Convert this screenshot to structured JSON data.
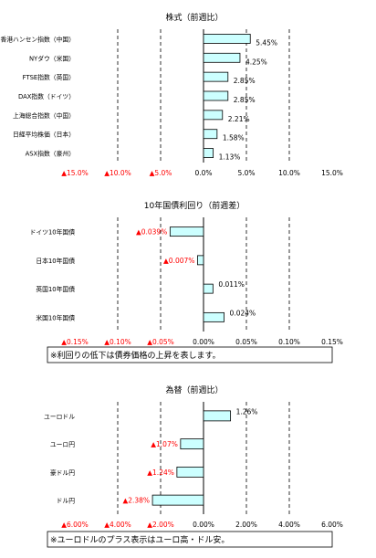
{
  "chart_data": [
    {
      "type": "bar",
      "orientation": "horizontal",
      "title": "株式（前週比）",
      "categories": [
        "香港ハンセン指数（中国）",
        "NYダウ（米国）",
        "FTSE指数（英国）",
        "DAX指数（ドイツ）",
        "上海総合指数（中国）",
        "日経平均株価（日本）",
        "ASX指数（豪州）"
      ],
      "values": [
        5.45,
        4.25,
        2.85,
        2.85,
        2.21,
        1.58,
        1.13
      ],
      "value_labels": [
        "5.45%",
        "4.25%",
        "2.85%",
        "2.85%",
        "2.21%",
        "1.58%",
        "1.13%"
      ],
      "xlim": [
        -15,
        15
      ],
      "ticks": [
        -15,
        -10,
        -5,
        0,
        5,
        10,
        15
      ],
      "tick_labels": [
        "▲15.0%",
        "▲10.0%",
        "▲5.0%",
        "0.0%",
        "5.0%",
        "10.0%",
        "15.0%"
      ],
      "grid": "vertical dashed",
      "note": ""
    },
    {
      "type": "bar",
      "orientation": "horizontal",
      "title": "10年国債利回り（前週差）",
      "categories": [
        "ドイツ10年国債",
        "日本10年国債",
        "英国10年国債",
        "米国10年国債"
      ],
      "values": [
        -0.039,
        -0.007,
        0.011,
        0.024
      ],
      "value_labels": [
        "▲0.039%",
        "▲0.007%",
        "0.011%",
        "0.024%"
      ],
      "xlim": [
        -0.15,
        0.15
      ],
      "ticks": [
        -0.15,
        -0.1,
        -0.05,
        0,
        0.05,
        0.1,
        0.15
      ],
      "tick_labels": [
        "▲0.15%",
        "▲0.10%",
        "▲0.05%",
        "0.00%",
        "0.05%",
        "0.10%",
        "0.15%"
      ],
      "grid": "vertical dashed",
      "note": "※利回りの低下は債券価格の上昇を表します。"
    },
    {
      "type": "bar",
      "orientation": "horizontal",
      "title": "為替（前週比）",
      "categories": [
        "ユーロドル",
        "ユーロ円",
        "豪ドル円",
        "ドル円"
      ],
      "values": [
        1.26,
        -1.07,
        -1.24,
        -2.38
      ],
      "value_labels": [
        "1.26%",
        "▲1.07%",
        "▲1.24%",
        "▲2.38%"
      ],
      "xlim": [
        -6,
        6
      ],
      "ticks": [
        -6,
        -4,
        -2,
        0,
        2,
        4,
        6
      ],
      "tick_labels": [
        "▲6.00%",
        "▲4.00%",
        "▲2.00%",
        "0.00%",
        "2.00%",
        "4.00%",
        "6.00%"
      ],
      "grid": "vertical dashed",
      "note": "※ユーロドルのプラス表示はユーロ高・ドル安。"
    }
  ],
  "colors": {
    "bar_fill": "#ccffff",
    "bar_stroke": "#000000",
    "negative_text": "#ff0000",
    "positive_text": "#000000",
    "grid": "#000000"
  }
}
